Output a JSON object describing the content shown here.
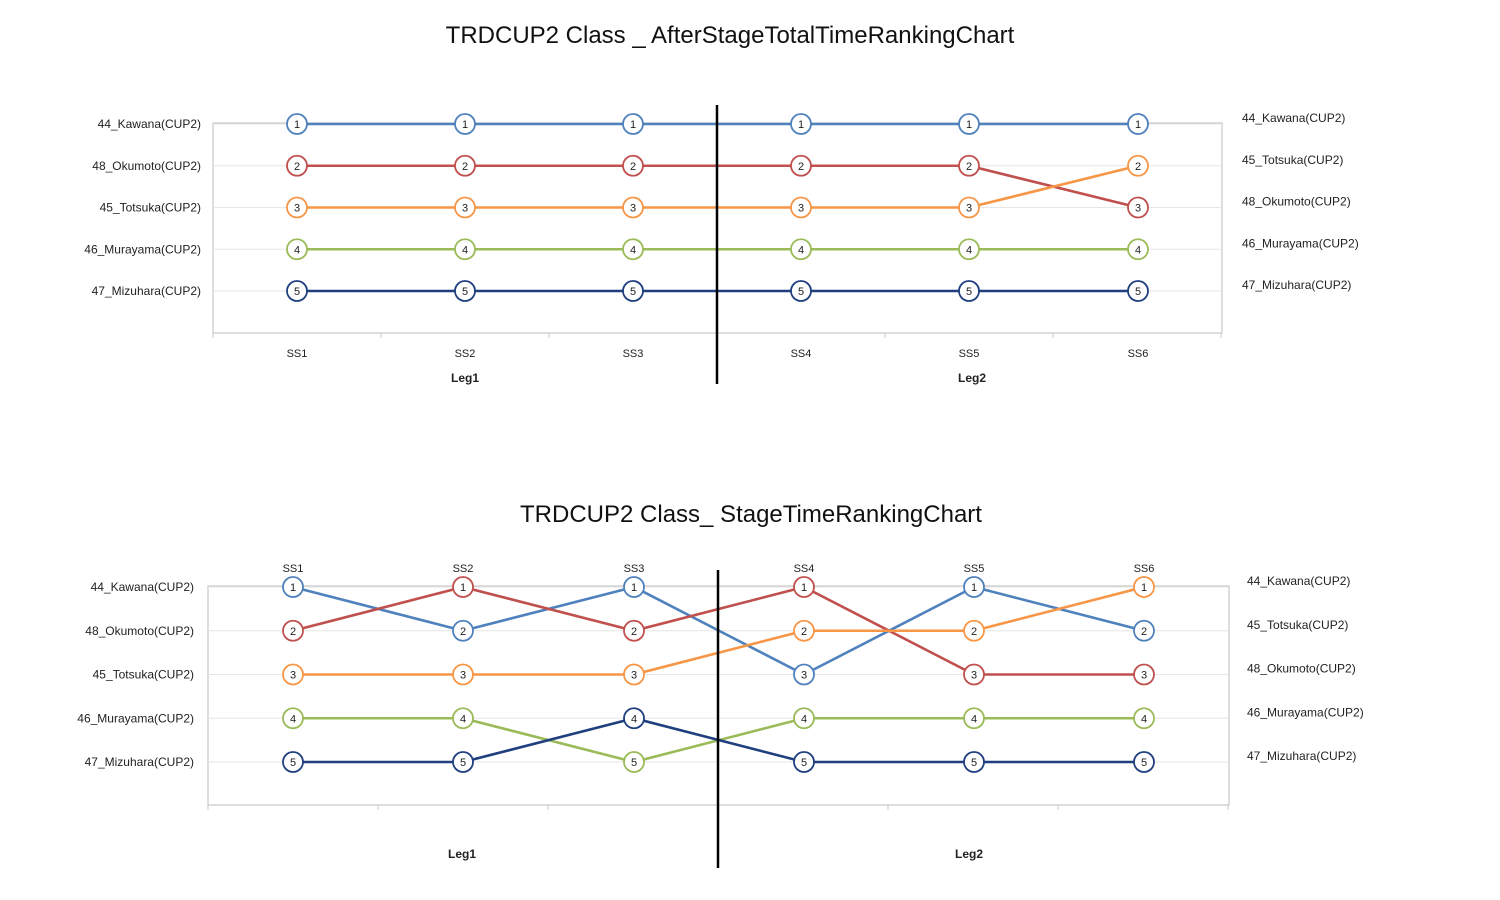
{
  "chart_data": [
    {
      "type": "line",
      "title": "TRDCUP2 Class _ AfterStageTotalTimeRankingChart",
      "categories": [
        "SS1",
        "SS2",
        "SS3",
        "SS4",
        "SS5",
        "SS6"
      ],
      "groups": [
        {
          "label": "Leg1",
          "categories": [
            "SS1",
            "SS2",
            "SS3"
          ]
        },
        {
          "label": "Leg2",
          "categories": [
            "SS4",
            "SS5",
            "SS6"
          ]
        }
      ],
      "y_left_labels": [
        "44_Kawana(CUP2)",
        "48_Okumoto(CUP2)",
        "45_Totsuka(CUP2)",
        "46_Murayama(CUP2)",
        "47_Mizuhara(CUP2)"
      ],
      "y_right_labels": [
        "44_Kawana(CUP2)",
        "45_Totsuka(CUP2)",
        "48_Okumoto(CUP2)",
        "46_Murayama(CUP2)",
        "47_Mizuhara(CUP2)"
      ],
      "ylim": [
        1,
        5
      ],
      "y_inverted": true,
      "grid": true,
      "series": [
        {
          "color": "#4f81bd",
          "values": [
            1,
            1,
            1,
            1,
            1,
            1
          ]
        },
        {
          "color": "#c0504d",
          "values": [
            2,
            2,
            2,
            2,
            2,
            3
          ]
        },
        {
          "color": "#f79646",
          "values": [
            3,
            3,
            3,
            3,
            3,
            2
          ]
        },
        {
          "color": "#9bbb59",
          "values": [
            4,
            4,
            4,
            4,
            4,
            4
          ]
        },
        {
          "color": "#1f3f7f",
          "values": [
            5,
            5,
            5,
            5,
            5,
            5
          ]
        }
      ]
    },
    {
      "type": "line",
      "title": "TRDCUP2 Class_ StageTimeRankingChart",
      "categories": [
        "SS1",
        "SS2",
        "SS3",
        "SS4",
        "SS5",
        "SS6"
      ],
      "groups": [
        {
          "label": "Leg1",
          "categories": [
            "SS1",
            "SS2",
            "SS3"
          ]
        },
        {
          "label": "Leg2",
          "categories": [
            "SS4",
            "SS5",
            "SS6"
          ]
        }
      ],
      "y_left_labels": [
        "44_Kawana(CUP2)",
        "48_Okumoto(CUP2)",
        "45_Totsuka(CUP2)",
        "46_Murayama(CUP2)",
        "47_Mizuhara(CUP2)"
      ],
      "y_right_labels": [
        "44_Kawana(CUP2)",
        "45_Totsuka(CUP2)",
        "48_Okumoto(CUP2)",
        "46_Murayama(CUP2)",
        "47_Mizuhara(CUP2)"
      ],
      "ylim": [
        1,
        5
      ],
      "y_inverted": true,
      "grid": true,
      "series": [
        {
          "color": "#4f81bd",
          "values": [
            1,
            2,
            1,
            3,
            1,
            2
          ]
        },
        {
          "color": "#c0504d",
          "values": [
            2,
            1,
            2,
            1,
            3,
            3
          ]
        },
        {
          "color": "#f79646",
          "values": [
            3,
            3,
            3,
            2,
            2,
            1
          ]
        },
        {
          "color": "#9bbb59",
          "values": [
            4,
            4,
            5,
            4,
            4,
            4
          ]
        },
        {
          "color": "#1f3f7f",
          "values": [
            5,
            5,
            4,
            5,
            5,
            5
          ]
        }
      ]
    }
  ]
}
